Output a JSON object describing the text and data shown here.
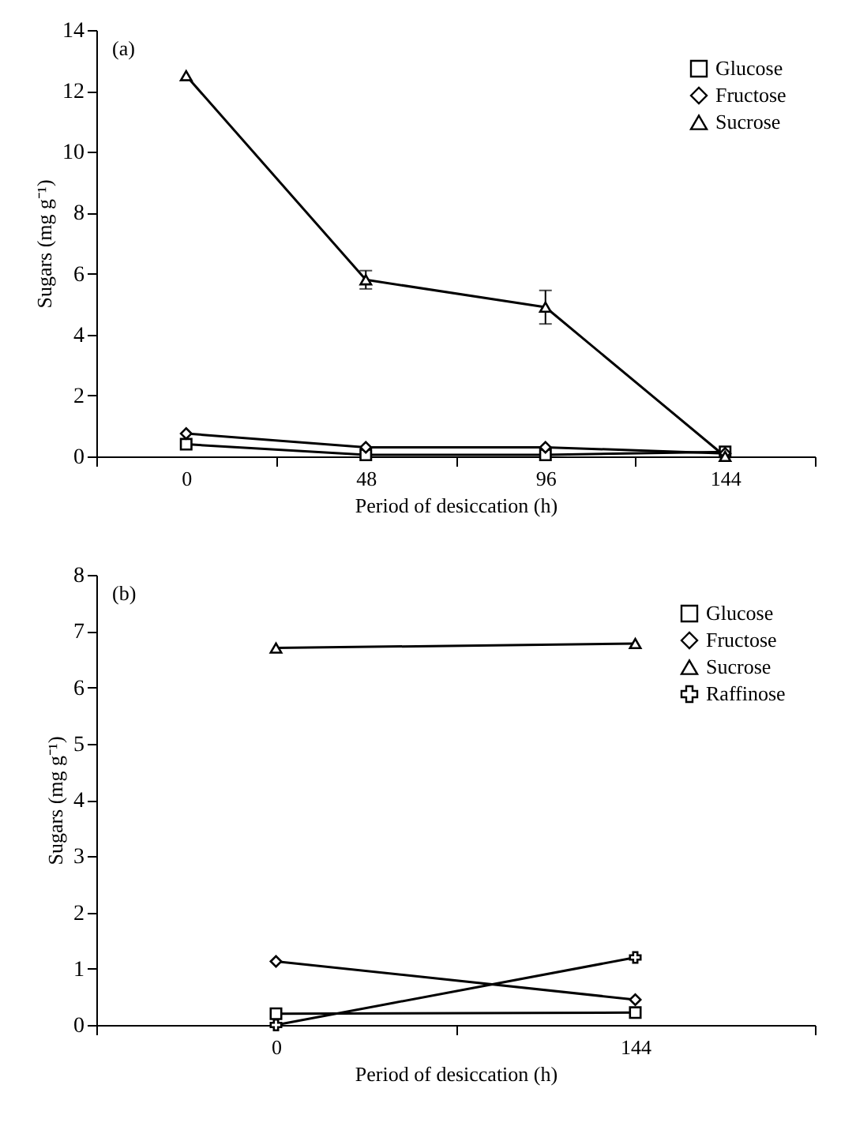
{
  "chart_data": [
    {
      "type": "line",
      "categories": [
        "0",
        "48",
        "96",
        "144"
      ],
      "xlabel": "Period of desiccation (h)",
      "ylabel": "Sugars (mg g⁻¹)",
      "ylim": [
        0,
        14
      ],
      "yticks": [
        0,
        2,
        4,
        6,
        8,
        10,
        12,
        14
      ],
      "legend": "top right",
      "annotations": [
        "(a)"
      ],
      "series": [
        {
          "name": "Glucose",
          "color": "#000000",
          "marker": "square",
          "values": [
            0.4,
            0.05,
            0.05,
            0.15
          ]
        },
        {
          "name": "Fructose",
          "color": "#000000",
          "marker": "diamond",
          "values": [
            0.75,
            0.3,
            0.3,
            0.1
          ]
        },
        {
          "name": "Sucrose",
          "color": "#000000",
          "marker": "triangle",
          "values": [
            12.5,
            5.8,
            4.9,
            0
          ],
          "errors": [
            null,
            0.3,
            0.55,
            null
          ]
        }
      ]
    },
    {
      "type": "line",
      "categories": [
        "0",
        "144"
      ],
      "xlabel": "Period of desiccation (h)",
      "ylabel": "Sugars (mg g⁻¹)",
      "ylim": [
        0,
        8
      ],
      "yticks": [
        0,
        1,
        2,
        3,
        4,
        5,
        6,
        7,
        8
      ],
      "legend": "top right",
      "annotations": [
        "(b)"
      ],
      "series": [
        {
          "name": "Glucose",
          "color": "#000000",
          "marker": "square",
          "values": [
            0.2,
            0.22
          ]
        },
        {
          "name": "Fructose",
          "color": "#000000",
          "marker": "diamond",
          "values": [
            1.13,
            0.45
          ]
        },
        {
          "name": "Sucrose",
          "color": "#000000",
          "marker": "triangle",
          "values": [
            6.7,
            6.78
          ]
        },
        {
          "name": "Raffinose",
          "color": "#000000",
          "marker": "cross",
          "values": [
            0,
            1.2
          ]
        }
      ]
    }
  ]
}
